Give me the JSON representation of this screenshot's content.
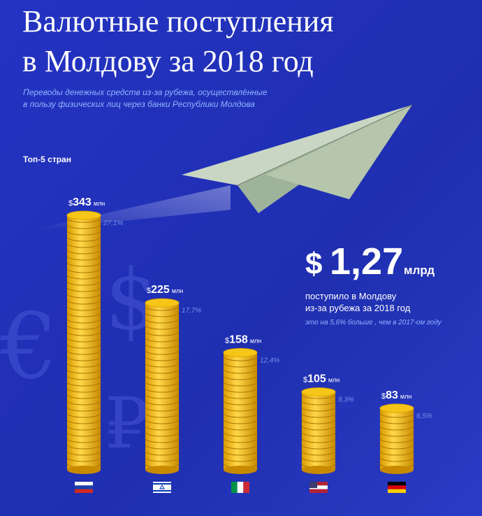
{
  "chart_data": {
    "type": "coinstack",
    "title": [
      "Валютные поступления",
      "в Молдову за 2018 год"
    ],
    "subtitle": [
      "Переводы денежных средств из-за рубежа, осуществлённые",
      "в пользу физических лиц через банки Республики Молдова"
    ],
    "group_label": "Топ-5 стран",
    "values": [
      343,
      225,
      158,
      105,
      83
    ],
    "currency": "$",
    "unit": "млн",
    "share_labels": [
      "27,1%",
      "17,7%",
      "12,4%",
      "8,3%",
      "6,5%"
    ],
    "ylim": [
      0,
      343
    ],
    "color": "#f5c518",
    "total": {
      "currency": "$",
      "label": "1,27",
      "unit": "млрд",
      "text": [
        "поступило в Молдову",
        "из-за рубежа за 2018 год"
      ],
      "note": "это на 5,6% больше , чем в 2017-ом году"
    }
  }
}
